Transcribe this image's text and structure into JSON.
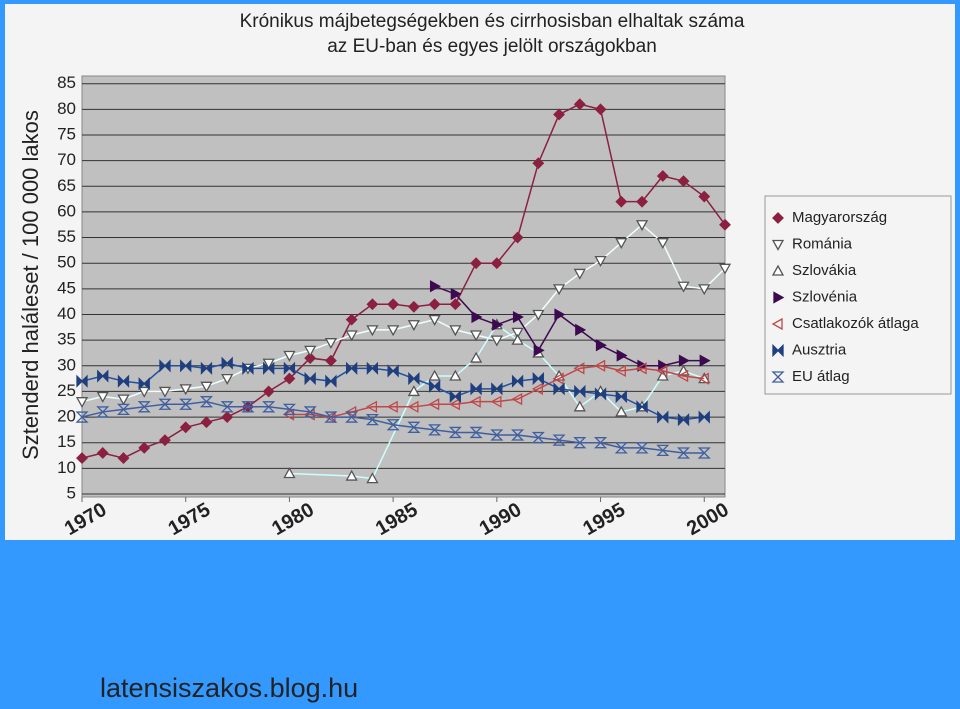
{
  "chart_data": {
    "type": "line",
    "title": [
      "Krónikus májbetegségekben és cirrhosisban elhaltak száma",
      "az EU-ban és egyes jelölt országokban"
    ],
    "y_label": "Sztenderd haláleset / 100 000 lakos",
    "source": "latensiszakos.blog.hu",
    "x": [
      1970,
      1971,
      1972,
      1973,
      1974,
      1975,
      1976,
      1977,
      1978,
      1979,
      1980,
      1981,
      1982,
      1983,
      1984,
      1985,
      1986,
      1987,
      1988,
      1989,
      1990,
      1991,
      1992,
      1993,
      1994,
      1995,
      1996,
      1997,
      1998,
      1999,
      2000,
      2001
    ],
    "xlim": [
      1970,
      2001
    ],
    "xticks": [
      1970,
      1975,
      1980,
      1985,
      1990,
      1995,
      2000
    ],
    "ylim": [
      5,
      86.5
    ],
    "yticks": [
      5,
      10,
      15,
      20,
      25,
      30,
      35,
      40,
      45,
      50,
      55,
      60,
      65,
      70,
      75,
      80,
      85
    ],
    "grid": true,
    "legend": "right",
    "series": [
      {
        "name": "Magyarország",
        "color": "#8b2040",
        "line_color": "#8b2040",
        "marker": "diamond",
        "values": [
          12,
          13,
          12,
          14,
          15.5,
          18,
          19,
          20,
          22,
          25,
          27.5,
          31.5,
          31,
          39,
          42,
          42,
          41.5,
          42,
          42,
          50,
          50,
          55,
          69.5,
          79,
          81,
          80,
          62,
          62,
          67,
          66,
          63,
          57.5
        ]
      },
      {
        "name": "Románia",
        "color": "#ffffff",
        "line_color": "#f0ffff",
        "marker": "tri-down",
        "values": [
          23,
          24,
          23.5,
          25,
          25,
          25.5,
          26,
          27.5,
          29.5,
          30.5,
          32,
          33,
          34.5,
          36,
          37,
          37,
          38,
          39,
          37,
          36,
          35,
          36.5,
          40,
          45,
          48,
          50.5,
          54,
          57.5,
          54,
          45.5,
          45,
          49
        ]
      },
      {
        "name": "Szlovákia",
        "color": "#ffffff",
        "line_color": "#ccffff",
        "marker": "tri-up",
        "x": [
          1980,
          1983,
          1984,
          1986,
          1987,
          1988,
          1989,
          1990,
          1991,
          1992,
          1993,
          1994,
          1995,
          1996,
          1997,
          1998,
          1999,
          2000
        ],
        "values": [
          9,
          8.5,
          8,
          25,
          28,
          28,
          31.5,
          38,
          35,
          32.5,
          28,
          22,
          25,
          21,
          22,
          28,
          29,
          27.5
        ]
      },
      {
        "name": "Szlovénia",
        "color": "#3d0a50",
        "line_color": "#3d0a50",
        "marker": "tri-right",
        "values": [
          null,
          null,
          null,
          null,
          null,
          null,
          null,
          null,
          null,
          null,
          null,
          null,
          null,
          null,
          null,
          null,
          null,
          45.5,
          44,
          39.5,
          38,
          39.5,
          33,
          40,
          37,
          34,
          32,
          30,
          30,
          31,
          31,
          null
        ]
      },
      {
        "name": "Csatlakozók átlaga",
        "color": "#c04848",
        "line_color": "#c04848",
        "marker": "tri-left",
        "values": [
          null,
          null,
          null,
          null,
          null,
          null,
          null,
          null,
          null,
          null,
          20.5,
          20.5,
          20,
          21,
          22,
          22,
          22,
          22.5,
          22.5,
          23,
          23,
          23.5,
          25.5,
          27.5,
          29.5,
          30,
          29,
          29.5,
          29,
          28,
          27.5,
          null
        ]
      },
      {
        "name": "Ausztria",
        "color": "#1f3f7f",
        "line_color": "#2050a0",
        "marker": "bowtie",
        "values": [
          27,
          28,
          27,
          26.5,
          30,
          30,
          29.5,
          30.5,
          29.5,
          29.5,
          29.5,
          27.5,
          27,
          29.5,
          29.5,
          29,
          27.5,
          26,
          24,
          25.5,
          25.5,
          27,
          27.5,
          25.5,
          25,
          24.5,
          24,
          22,
          20,
          19.5,
          20,
          null
        ]
      },
      {
        "name": "EU átlag",
        "color": "#3f5f9f",
        "line_color": "#3f5f9f",
        "marker": "hourglass",
        "values": [
          20,
          21,
          21.5,
          22,
          22.5,
          22.5,
          23,
          22,
          22,
          22,
          21.5,
          21,
          20,
          20,
          19.5,
          18.5,
          18,
          17.5,
          17,
          17,
          16.5,
          16.5,
          16,
          15.5,
          15,
          15,
          14,
          14,
          13.5,
          13,
          13,
          null
        ]
      }
    ]
  }
}
